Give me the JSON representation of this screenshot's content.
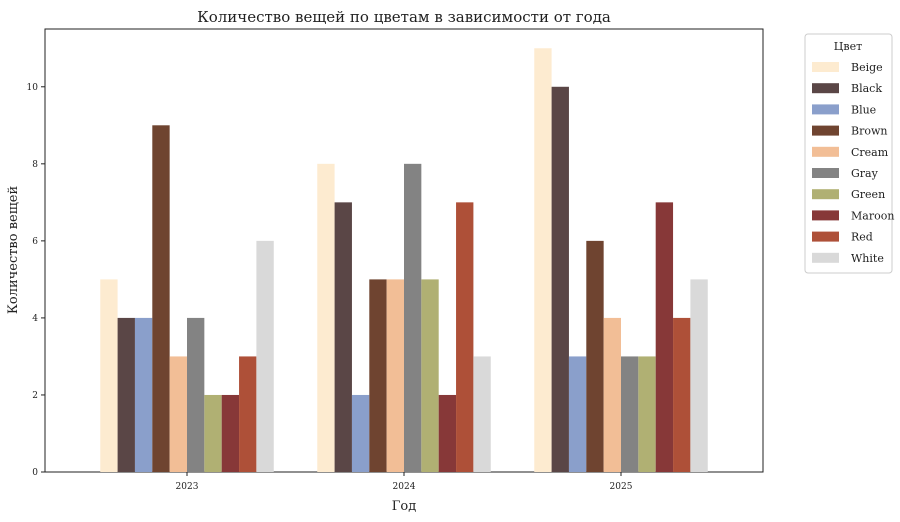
{
  "chart_data": {
    "type": "bar",
    "title": "Количество вещей по цветам в зависимости от года",
    "xlabel": "Год",
    "ylabel": "Количество вещей",
    "categories": [
      "2023",
      "2024",
      "2025"
    ],
    "ylim": [
      0,
      11.5
    ],
    "yticks": [
      0,
      2,
      4,
      6,
      8,
      10
    ],
    "grid": false,
    "legend": {
      "title": "Цвет",
      "placement": "outside-right"
    },
    "series": [
      {
        "name": "Beige",
        "color": "#FDEBD0",
        "values": [
          5,
          8,
          11
        ]
      },
      {
        "name": "Black",
        "color": "#5A4646",
        "values": [
          4,
          7,
          10
        ]
      },
      {
        "name": "Blue",
        "color": "#8A9FCB",
        "values": [
          4,
          2,
          3
        ]
      },
      {
        "name": "Brown",
        "color": "#6F4430",
        "values": [
          9,
          5,
          6
        ]
      },
      {
        "name": "Cream",
        "color": "#F2BE96",
        "values": [
          3,
          5,
          4
        ]
      },
      {
        "name": "Gray",
        "color": "#838383",
        "values": [
          4,
          8,
          3
        ]
      },
      {
        "name": "Green",
        "color": "#B0B073",
        "values": [
          2,
          5,
          3
        ]
      },
      {
        "name": "Maroon",
        "color": "#873838",
        "values": [
          2,
          2,
          7
        ]
      },
      {
        "name": "Red",
        "color": "#AE5038",
        "values": [
          3,
          7,
          4
        ]
      },
      {
        "name": "White",
        "color": "#D9D9D9",
        "values": [
          6,
          3,
          5
        ]
      }
    ]
  }
}
